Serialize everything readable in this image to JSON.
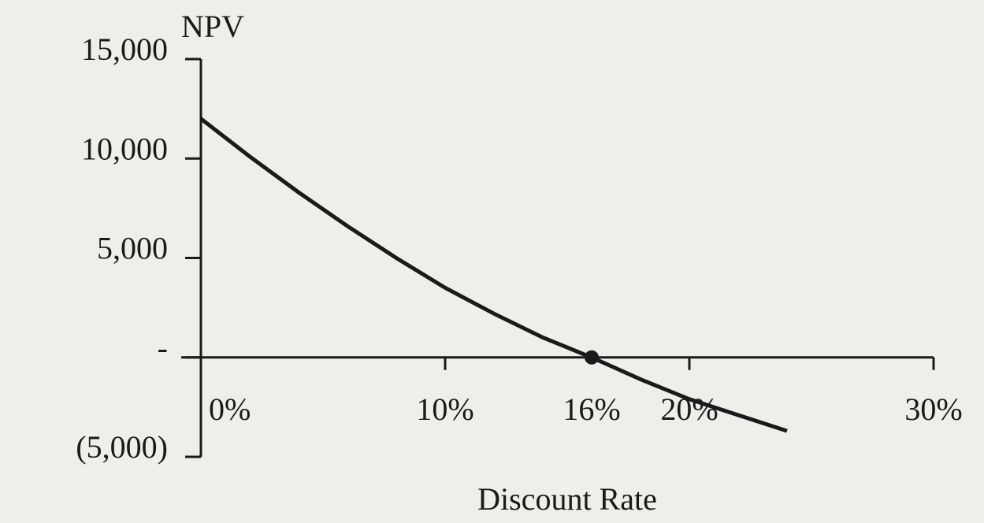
{
  "chart_data": {
    "type": "line",
    "ylabel": "NPV",
    "xlabel": "Discount Rate",
    "x": [
      0,
      2,
      4,
      6,
      8,
      10,
      12,
      14,
      16,
      18,
      20,
      22,
      24
    ],
    "values": [
      12000,
      10100,
      8300,
      6600,
      5000,
      3500,
      2200,
      1000,
      0,
      -1100,
      -2100,
      -2900,
      -3700
    ],
    "color": "#1a1a1a",
    "xlim": [
      0,
      30
    ],
    "ylim": [
      -5000,
      15000
    ],
    "xticks": [
      {
        "value": 0,
        "label": "0%"
      },
      {
        "value": 10,
        "label": "10%"
      },
      {
        "value": 20,
        "label": "20%"
      },
      {
        "value": 30,
        "label": "30%"
      }
    ],
    "yticks": [
      {
        "value": -5000,
        "label": "(5,000)"
      },
      {
        "value": 0,
        "label": "-"
      },
      {
        "value": 5000,
        "label": "5,000"
      },
      {
        "value": 10000,
        "label": "10,000"
      },
      {
        "value": 15000,
        "label": "15,000"
      }
    ],
    "annotations": [
      {
        "x": 16,
        "y": 0,
        "label": "16%"
      }
    ]
  }
}
